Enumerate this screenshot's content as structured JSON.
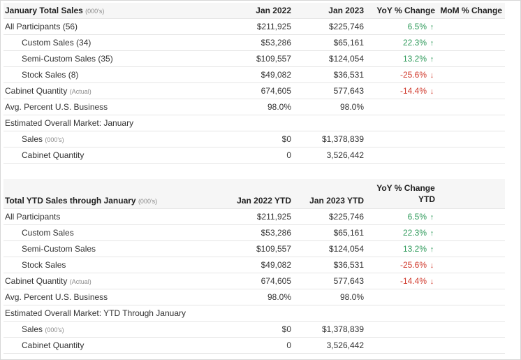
{
  "monthly": {
    "title": "January Total Sales",
    "title_unit": "(000's)",
    "columns": [
      "Jan 2022",
      "Jan 2023",
      "YoY % Change",
      "MoM % Change"
    ],
    "rows": [
      {
        "label": "All Participants (56)",
        "unit": "",
        "v1": "$211,925",
        "v2": "$225,746",
        "yoy": "6.5%",
        "dir": "up",
        "indent": false
      },
      {
        "label": "Custom Sales (34)",
        "unit": "",
        "v1": "$53,286",
        "v2": "$65,161",
        "yoy": "22.3%",
        "dir": "up",
        "indent": true
      },
      {
        "label": "Semi-Custom Sales (35)",
        "unit": "",
        "v1": "$109,557",
        "v2": "$124,054",
        "yoy": "13.2%",
        "dir": "up",
        "indent": true
      },
      {
        "label": "Stock Sales (8)",
        "unit": "",
        "v1": "$49,082",
        "v2": "$36,531",
        "yoy": "-25.6%",
        "dir": "down",
        "indent": true
      },
      {
        "label": "Cabinet Quantity",
        "unit": "(Actual)",
        "v1": "674,605",
        "v2": "577,643",
        "yoy": "-14.4%",
        "dir": "down",
        "indent": false
      },
      {
        "label": "Avg. Percent U.S. Business",
        "unit": "",
        "v1": "98.0%",
        "v2": "98.0%",
        "yoy": "",
        "dir": "",
        "indent": false
      },
      {
        "label": "Estimated Overall Market: January",
        "unit": "",
        "v1": "",
        "v2": "",
        "yoy": "",
        "dir": "",
        "indent": false
      },
      {
        "label": "Sales",
        "unit": "(000's)",
        "v1": "$0",
        "v2": "$1,378,839",
        "yoy": "",
        "dir": "",
        "indent": true
      },
      {
        "label": "Cabinet Quantity",
        "unit": "",
        "v1": "0",
        "v2": "3,526,442",
        "yoy": "",
        "dir": "",
        "indent": true
      }
    ]
  },
  "ytd": {
    "title": "Total YTD Sales through January",
    "title_unit": "(000's)",
    "col1": "Jan 2022 YTD",
    "col2": "Jan 2023 YTD",
    "col3_line1": "YoY % Change",
    "col3_line2": "YTD",
    "rows": [
      {
        "label": "All Participants",
        "unit": "",
        "v1": "$211,925",
        "v2": "$225,746",
        "yoy": "6.5%",
        "dir": "up",
        "indent": false
      },
      {
        "label": "Custom Sales",
        "unit": "",
        "v1": "$53,286",
        "v2": "$65,161",
        "yoy": "22.3%",
        "dir": "up",
        "indent": true
      },
      {
        "label": "Semi-Custom Sales",
        "unit": "",
        "v1": "$109,557",
        "v2": "$124,054",
        "yoy": "13.2%",
        "dir": "up",
        "indent": true
      },
      {
        "label": "Stock Sales",
        "unit": "",
        "v1": "$49,082",
        "v2": "$36,531",
        "yoy": "-25.6%",
        "dir": "down",
        "indent": true
      },
      {
        "label": "Cabinet Quantity",
        "unit": "(Actual)",
        "v1": "674,605",
        "v2": "577,643",
        "yoy": "-14.4%",
        "dir": "down",
        "indent": false
      },
      {
        "label": "Avg. Percent U.S. Business",
        "unit": "",
        "v1": "98.0%",
        "v2": "98.0%",
        "yoy": "",
        "dir": "",
        "indent": false
      },
      {
        "label": "Estimated Overall Market: YTD Through January",
        "unit": "",
        "v1": "",
        "v2": "",
        "yoy": "",
        "dir": "",
        "indent": false
      },
      {
        "label": "Sales",
        "unit": "(000's)",
        "v1": "$0",
        "v2": "$1,378,839",
        "yoy": "",
        "dir": "",
        "indent": true
      },
      {
        "label": "Cabinet Quantity",
        "unit": "",
        "v1": "0",
        "v2": "3,526,442",
        "yoy": "",
        "dir": "",
        "indent": true
      }
    ]
  },
  "icons": {
    "up": "arrow-up-icon",
    "down": "arrow-down-icon"
  },
  "colors": {
    "up": "#2e9a5a",
    "down": "#d0382b",
    "header_bg": "#f6f6f6"
  }
}
